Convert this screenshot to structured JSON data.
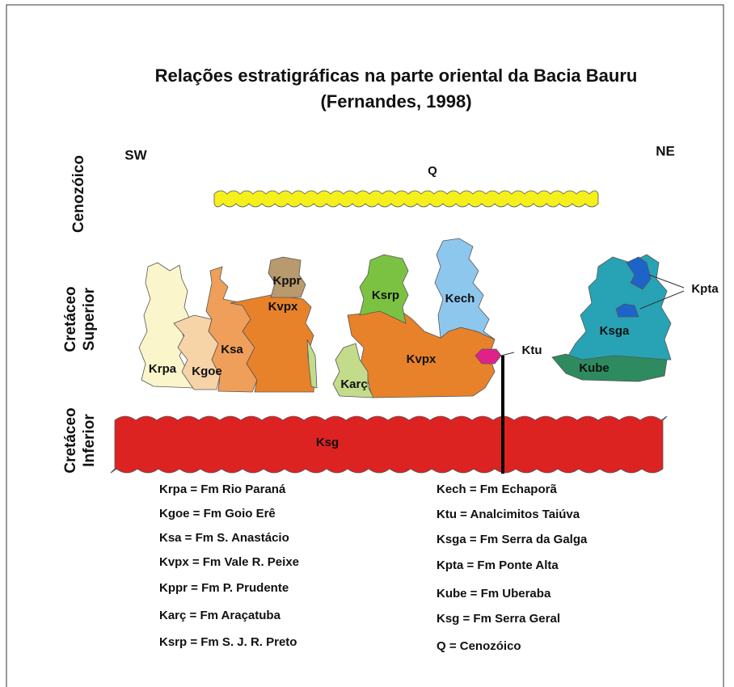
{
  "header": {
    "title": "Relações estratigráficas na parte oriental da Bacia Bauru",
    "subtitle": "(Fernandes, 1998)"
  },
  "directions": {
    "left": "SW",
    "right": "NE"
  },
  "periods": {
    "cenozoic": "Cenozóico",
    "upper_cretaceous": [
      "Cretáceo",
      "Superior"
    ],
    "lower_cretaceous": [
      "Cretáceo",
      "Inferior"
    ]
  },
  "units": {
    "q": "Q",
    "kppr": "Kppr",
    "kvpx_left": "Kvpx",
    "ksa": "Ksa",
    "krpa": "Krpa",
    "kgoe": "Kgoe",
    "ksrp": "Ksrp",
    "kech": "Kech",
    "kvpx_center": "Kvpx",
    "karc": "Karç",
    "ktu": "Ktu",
    "kpta": "Kpta",
    "ksga": "Ksga",
    "kube": "Kube",
    "ksg": "Ksg"
  },
  "legend": {
    "left": [
      "Krpa = Fm Rio Paraná",
      "Kgoe = Fm Goio Erê",
      "Ksa = Fm S. Anastácio",
      "Kvpx = Fm Vale R. Peixe",
      "Kppr = Fm P. Prudente",
      "Karç = Fm Araçatuba",
      "Ksrp = Fm S. J. R. Preto"
    ],
    "right": [
      "Kech = Fm Echaporã",
      "Ktu = Analcimitos Taiúva",
      "Ksga = Fm Serra da Galga",
      "Kpta = Fm Ponte Alta",
      "Kube = Fm Uberaba",
      "Ksg = Fm Serra Geral",
      "Q = Cenozóico"
    ]
  }
}
